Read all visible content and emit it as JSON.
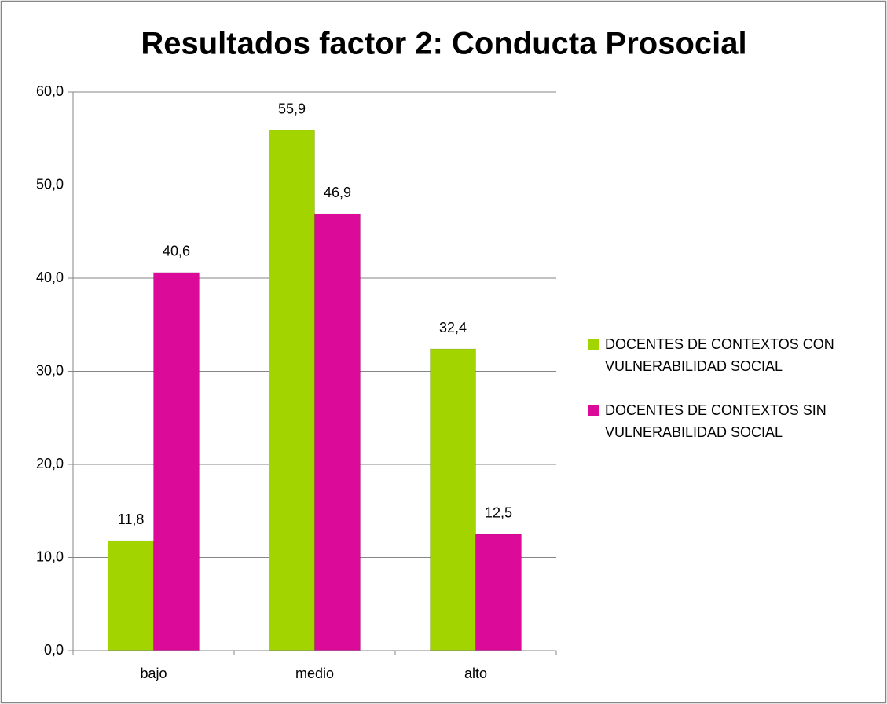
{
  "chart_data": {
    "type": "bar",
    "title": "Resultados factor 2: Conducta Prosocial",
    "categories": [
      "bajo",
      "medio",
      "alto"
    ],
    "series": [
      {
        "name": "DOCENTES DE CONTEXTOS CON VULNERABILIDAD SOCIAL",
        "color": "#a2d400",
        "values": [
          11.8,
          55.9,
          32.4
        ],
        "value_labels": [
          "11,8",
          "55,9",
          "32,4"
        ]
      },
      {
        "name": "DOCENTES DE CONTEXTOS SIN VULNERABILIDAD SOCIAL",
        "color": "#dc0a98",
        "values": [
          40.6,
          46.9,
          12.5
        ],
        "value_labels": [
          "40,6",
          "46,9",
          "12,5"
        ]
      }
    ],
    "ylim": [
      0,
      60
    ],
    "yticks": [
      {
        "value": 0,
        "label": "0,0"
      },
      {
        "value": 10,
        "label": "10,0"
      },
      {
        "value": 20,
        "label": "20,0"
      },
      {
        "value": 30,
        "label": "30,0"
      },
      {
        "value": 40,
        "label": "40,0"
      },
      {
        "value": 50,
        "label": "50,0"
      },
      {
        "value": 60,
        "label": "60,0"
      }
    ],
    "grid": true,
    "legend": "right"
  }
}
